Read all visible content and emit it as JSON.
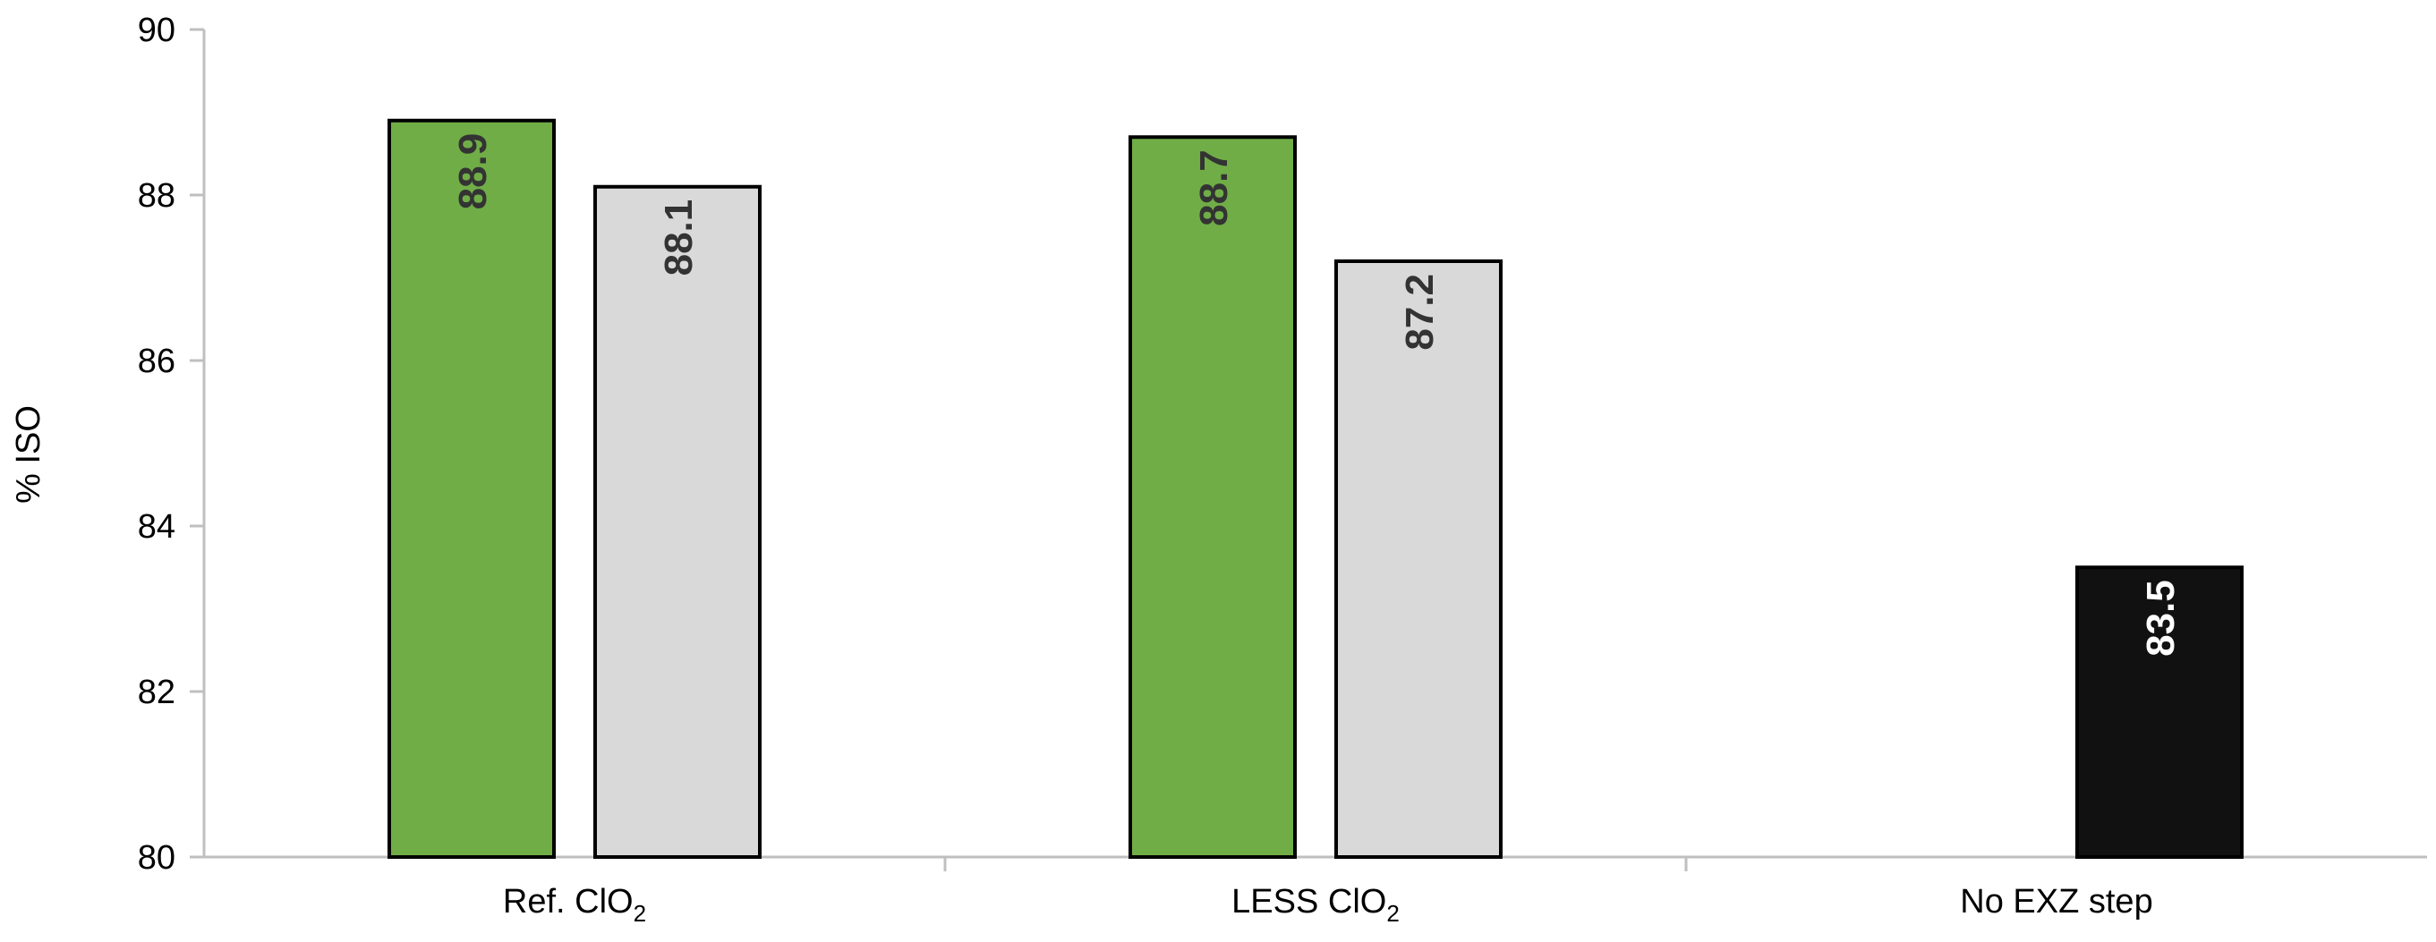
{
  "chart_data": {
    "type": "bar",
    "ylabel": "% ISO",
    "ylim": [
      80,
      90
    ],
    "yticks": [
      80,
      82,
      84,
      86,
      88,
      90
    ],
    "grid": false,
    "legend": "none",
    "categories": [
      {
        "main": "Ref. ClO",
        "sub": "2"
      },
      {
        "main": "LESS ClO",
        "sub": "2"
      },
      {
        "main": "No EXZ step",
        "sub": ""
      }
    ],
    "bars": [
      {
        "category": 0,
        "slot": 0,
        "value": 88.9,
        "label": "88.9",
        "fill": "#70ad47",
        "label_color": "#333333"
      },
      {
        "category": 0,
        "slot": 1,
        "value": 88.1,
        "label": "88.1",
        "fill": "#d9d9d9",
        "label_color": "#333333"
      },
      {
        "category": 1,
        "slot": 0,
        "value": 88.7,
        "label": "88.7",
        "fill": "#70ad47",
        "label_color": "#333333"
      },
      {
        "category": 1,
        "slot": 1,
        "value": 87.2,
        "label": "87.2",
        "fill": "#d9d9d9",
        "label_color": "#333333"
      },
      {
        "category": 2,
        "slot": 1,
        "value": 83.5,
        "label": "83.5",
        "fill": "#111111",
        "label_color": "#ffffff"
      }
    ],
    "colors": {
      "axis": "#bfbfbf",
      "bar_outline": "#000000"
    }
  }
}
